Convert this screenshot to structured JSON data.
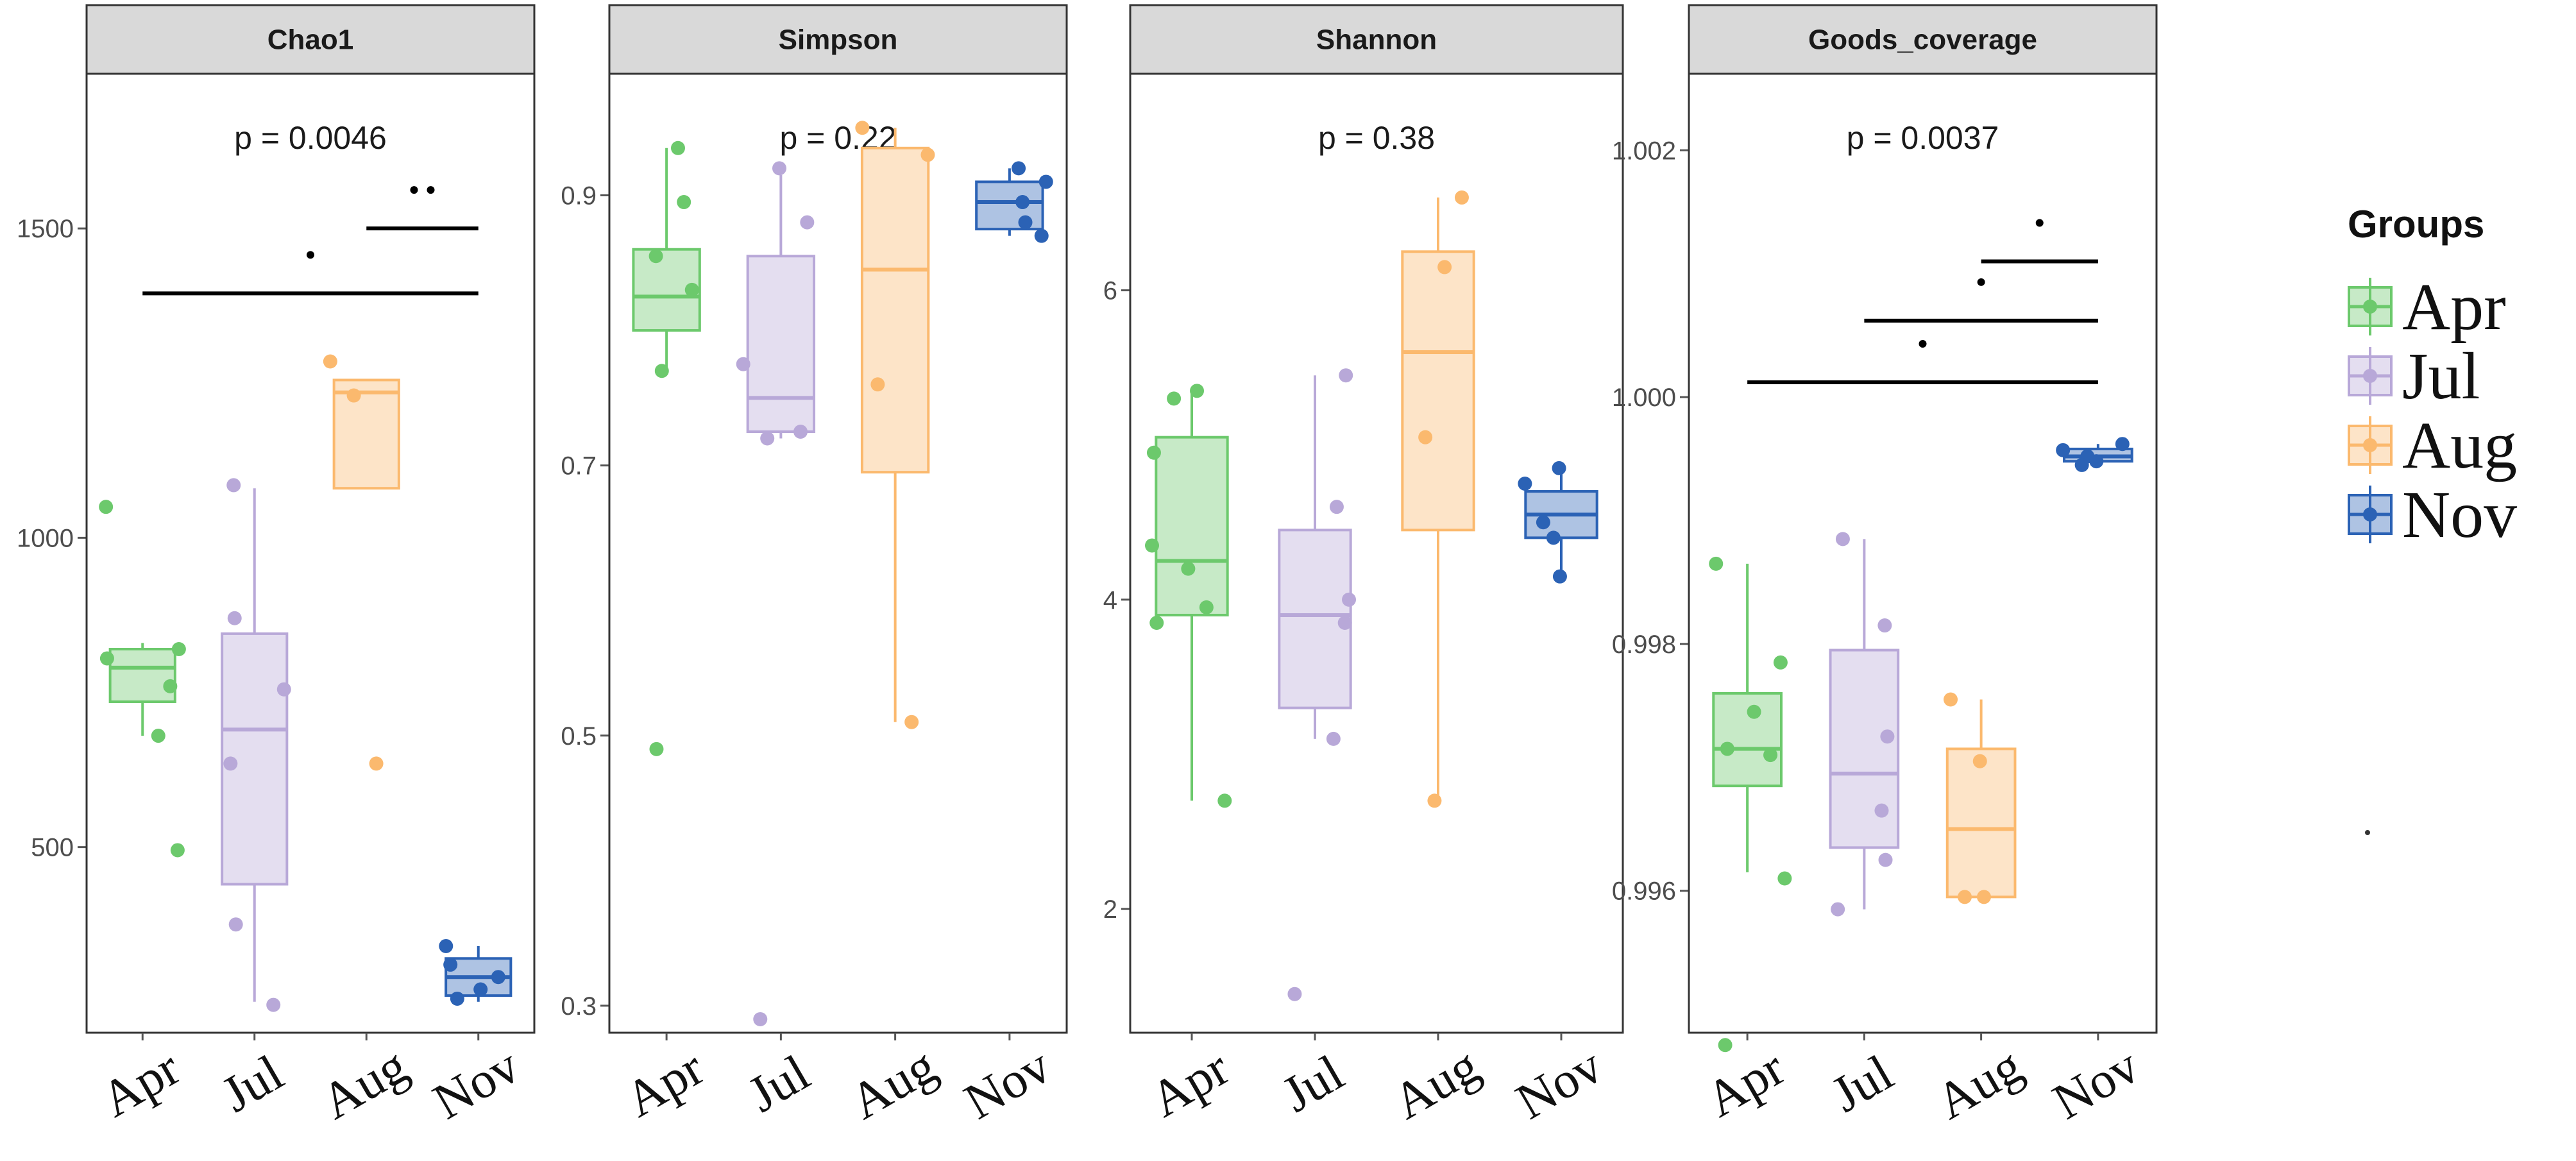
{
  "colors": {
    "Apr": "#6cc96c",
    "Jul": "#b8a8d8",
    "Aug": "#fbb96e",
    "Nov": "#2b62b5",
    "panel_border": "#333333",
    "strip_fill": "#d9d9d9",
    "bracket": "#000000"
  },
  "legend": {
    "title": "Groups",
    "items": [
      "Apr",
      "Jul",
      "Aug",
      "Nov"
    ]
  },
  "chart_data": [
    {
      "type": "box",
      "title": "Chao1",
      "p_label": "p = 0.0046",
      "categories": [
        "Apr",
        "Jul",
        "Aug",
        "Nov"
      ],
      "ylim": [
        200,
        1750
      ],
      "yticks": [
        500,
        1000,
        1500
      ],
      "ytick_labels": [
        "500",
        "1000",
        "1500"
      ],
      "boxes": [
        {
          "group": "Apr",
          "whisker_low": 680,
          "q1": 735,
          "median": 790,
          "q3": 820,
          "whisker_high": 830,
          "points": [
            1050,
            820,
            805,
            760,
            680,
            495
          ]
        },
        {
          "group": "Jul",
          "whisker_low": 250,
          "q1": 440,
          "median": 690,
          "q3": 845,
          "whisker_high": 1080,
          "points": [
            1085,
            870,
            755,
            635,
            375,
            245
          ]
        },
        {
          "group": "Aug",
          "whisker_low": 1080,
          "q1": 1080,
          "median": 1235,
          "q3": 1255,
          "whisker_high": 1255,
          "points": [
            1285,
            1230,
            635
          ]
        },
        {
          "group": "Nov",
          "whisker_low": 250,
          "q1": 260,
          "median": 290,
          "q3": 320,
          "whisker_high": 340,
          "points": [
            340,
            310,
            290,
            270,
            255
          ]
        }
      ],
      "brackets": [
        {
          "from": "Apr",
          "to": "Nov",
          "y": 1395,
          "label": "*"
        },
        {
          "from": "Aug",
          "to": "Nov",
          "y": 1500,
          "label": "**"
        }
      ]
    },
    {
      "type": "box",
      "title": "Simpson",
      "p_label": "p = 0.22",
      "categories": [
        "Apr",
        "Jul",
        "Aug",
        "Nov"
      ],
      "ylim": [
        0.28,
        0.99
      ],
      "yticks": [
        0.3,
        0.5,
        0.7,
        0.9
      ],
      "ytick_labels": [
        "0.3",
        "0.5",
        "0.7",
        "0.9"
      ],
      "boxes": [
        {
          "group": "Apr",
          "whisker_low": 0.77,
          "q1": 0.8,
          "median": 0.825,
          "q3": 0.86,
          "whisker_high": 0.935,
          "points": [
            0.935,
            0.895,
            0.855,
            0.83,
            0.77,
            0.49
          ]
        },
        {
          "group": "Jul",
          "whisker_low": 0.72,
          "q1": 0.725,
          "median": 0.75,
          "q3": 0.855,
          "whisker_high": 0.915,
          "points": [
            0.92,
            0.88,
            0.775,
            0.725,
            0.72,
            0.29
          ]
        },
        {
          "group": "Aug",
          "whisker_low": 0.51,
          "q1": 0.695,
          "median": 0.845,
          "q3": 0.935,
          "whisker_high": 0.95,
          "points": [
            0.95,
            0.93,
            0.76,
            0.51
          ]
        },
        {
          "group": "Nov",
          "whisker_low": 0.87,
          "q1": 0.875,
          "median": 0.895,
          "q3": 0.91,
          "whisker_high": 0.92,
          "points": [
            0.92,
            0.91,
            0.895,
            0.88,
            0.87
          ]
        }
      ],
      "brackets": []
    },
    {
      "type": "box",
      "title": "Shannon",
      "p_label": "p = 0.38",
      "categories": [
        "Apr",
        "Jul",
        "Aug",
        "Nov"
      ],
      "ylim": [
        1.2,
        7.4
      ],
      "yticks": [
        2,
        4,
        6
      ],
      "ytick_labels": [
        "2",
        "4",
        "6"
      ],
      "boxes": [
        {
          "group": "Apr",
          "whisker_low": 2.7,
          "q1": 3.9,
          "median": 4.25,
          "q3": 5.05,
          "whisker_high": 5.35,
          "points": [
            5.35,
            5.3,
            4.95,
            4.35,
            4.2,
            3.95,
            3.85,
            2.7
          ]
        },
        {
          "group": "Jul",
          "whisker_low": 3.1,
          "q1": 3.3,
          "median": 3.9,
          "q3": 4.45,
          "whisker_high": 5.45,
          "points": [
            5.45,
            4.6,
            4.0,
            3.85,
            3.1,
            1.45
          ]
        },
        {
          "group": "Aug",
          "whisker_low": 2.7,
          "q1": 4.45,
          "median": 5.6,
          "q3": 6.25,
          "whisker_high": 6.6,
          "points": [
            6.6,
            6.15,
            5.05,
            2.7
          ]
        },
        {
          "group": "Nov",
          "whisker_low": 4.15,
          "q1": 4.4,
          "median": 4.55,
          "q3": 4.7,
          "whisker_high": 4.85,
          "points": [
            4.85,
            4.75,
            4.5,
            4.4,
            4.15
          ]
        }
      ],
      "brackets": []
    },
    {
      "type": "box",
      "title": "Goods_coverage",
      "p_label": "p = 0.0037",
      "categories": [
        "Apr",
        "Jul",
        "Aug",
        "Nov"
      ],
      "ylim": [
        0.99485,
        1.00262
      ],
      "yticks": [
        0.996,
        0.998,
        1.0,
        1.002
      ],
      "ytick_labels": [
        "0.996",
        "0.998",
        "1.000",
        "1.002"
      ],
      "boxes": [
        {
          "group": "Apr",
          "whisker_low": 0.99615,
          "q1": 0.99685,
          "median": 0.99715,
          "q3": 0.9976,
          "whisker_high": 0.99865,
          "points": [
            0.99865,
            0.99785,
            0.99745,
            0.99715,
            0.9971,
            0.9961,
            0.99475
          ]
        },
        {
          "group": "Jul",
          "whisker_low": 0.99585,
          "q1": 0.99635,
          "median": 0.99695,
          "q3": 0.99795,
          "whisker_high": 0.99885,
          "points": [
            0.99885,
            0.99815,
            0.99725,
            0.99665,
            0.99625,
            0.99585
          ]
        },
        {
          "group": "Aug",
          "whisker_low": 0.99595,
          "q1": 0.99595,
          "median": 0.9965,
          "q3": 0.99715,
          "whisker_high": 0.99755,
          "points": [
            0.99755,
            0.99705,
            0.99595,
            0.99595
          ]
        },
        {
          "group": "Nov",
          "whisker_low": 0.99945,
          "q1": 0.99948,
          "median": 0.99952,
          "q3": 0.99958,
          "whisker_high": 0.99962,
          "points": [
            0.99962,
            0.99957,
            0.99952,
            0.99948,
            0.99945
          ]
        }
      ],
      "brackets": [
        {
          "from": "Apr",
          "to": "Nov",
          "y": 1.00012,
          "label": "*"
        },
        {
          "from": "Jul",
          "to": "Nov",
          "y": 1.00062,
          "label": "*"
        },
        {
          "from": "Aug",
          "to": "Nov",
          "y": 1.0011,
          "label": "*"
        }
      ]
    }
  ]
}
